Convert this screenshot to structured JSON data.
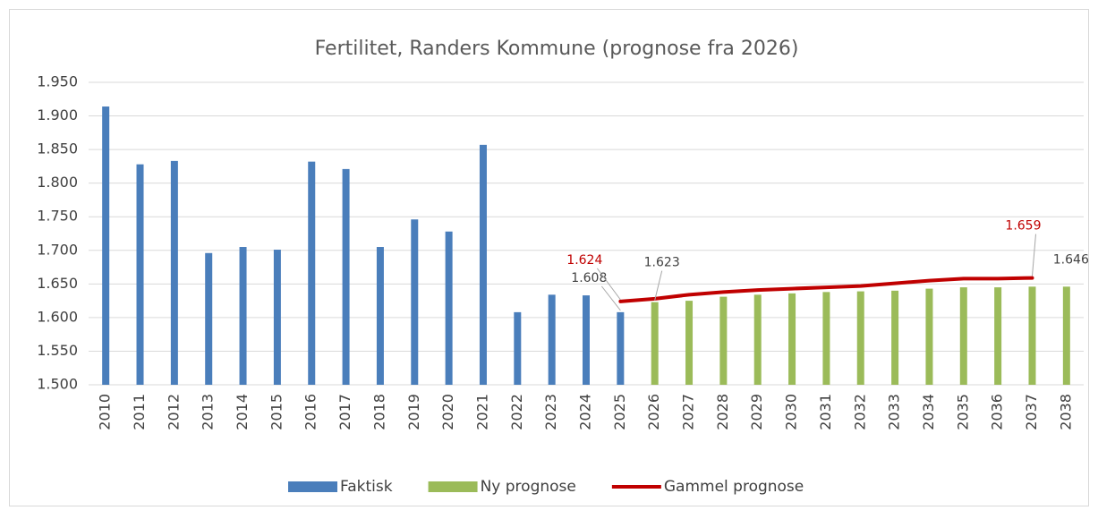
{
  "chart_data": {
    "type": "bar",
    "title": "Fertilitet, Randers Kommune (prognose fra 2026)",
    "categories": [
      "2010",
      "2011",
      "2012",
      "2013",
      "2014",
      "2015",
      "2016",
      "2017",
      "2018",
      "2019",
      "2020",
      "2021",
      "2022",
      "2023",
      "2024",
      "2025",
      "2026",
      "2027",
      "2028",
      "2029",
      "2030",
      "2031",
      "2032",
      "2033",
      "2034",
      "2035",
      "2036",
      "2037",
      "2038"
    ],
    "series": [
      {
        "name": "Faktisk",
        "type": "bar",
        "color": "#4a7ebb",
        "values": [
          1914,
          1828,
          1833,
          1696,
          1705,
          1701,
          1832,
          1821,
          1705,
          1746,
          1728,
          1857,
          1608,
          1634,
          1633,
          1608,
          null,
          null,
          null,
          null,
          null,
          null,
          null,
          null,
          null,
          null,
          null,
          null,
          null
        ],
        "value_labels": [
          null,
          null,
          null,
          null,
          null,
          null,
          null,
          null,
          null,
          null,
          null,
          null,
          null,
          null,
          null,
          "1.608",
          null,
          null,
          null,
          null,
          null,
          null,
          null,
          null,
          null,
          null,
          null,
          null,
          null
        ]
      },
      {
        "name": "Ny prognose",
        "type": "bar",
        "color": "#9bbb59",
        "values": [
          null,
          null,
          null,
          null,
          null,
          null,
          null,
          null,
          null,
          null,
          null,
          null,
          null,
          null,
          null,
          null,
          1623,
          1625,
          1631,
          1634,
          1636,
          1638,
          1639,
          1640,
          1643,
          1645,
          1645,
          1646,
          1646
        ],
        "value_labels": [
          null,
          null,
          null,
          null,
          null,
          null,
          null,
          null,
          null,
          null,
          null,
          null,
          null,
          null,
          null,
          null,
          "1.623",
          null,
          null,
          null,
          null,
          null,
          null,
          null,
          null,
          null,
          null,
          null,
          "1.646"
        ]
      },
      {
        "name": "Gammel prognose",
        "type": "line",
        "color": "#c00000",
        "values": [
          null,
          null,
          null,
          null,
          null,
          null,
          null,
          null,
          null,
          null,
          null,
          null,
          null,
          null,
          null,
          1624,
          1628,
          1634,
          1638,
          1641,
          1643,
          1645,
          1647,
          1651,
          1655,
          1658,
          1658,
          1659,
          null
        ],
        "value_labels": [
          null,
          null,
          null,
          null,
          null,
          null,
          null,
          null,
          null,
          null,
          null,
          null,
          null,
          null,
          null,
          "1.624",
          null,
          null,
          null,
          null,
          null,
          null,
          null,
          null,
          null,
          null,
          null,
          "1.659",
          null
        ]
      }
    ],
    "ylim": [
      1500,
      1950
    ],
    "yticks": [
      {
        "value": 1500,
        "label": "1.500"
      },
      {
        "value": 1550,
        "label": "1.550"
      },
      {
        "value": 1600,
        "label": "1.600"
      },
      {
        "value": 1650,
        "label": "1.650"
      },
      {
        "value": 1700,
        "label": "1.700"
      },
      {
        "value": 1750,
        "label": "1.750"
      },
      {
        "value": 1800,
        "label": "1.800"
      },
      {
        "value": 1850,
        "label": "1.850"
      },
      {
        "value": 1900,
        "label": "1.900"
      },
      {
        "value": 1950,
        "label": "1.950"
      }
    ],
    "grid": true,
    "legend": "bottom"
  }
}
